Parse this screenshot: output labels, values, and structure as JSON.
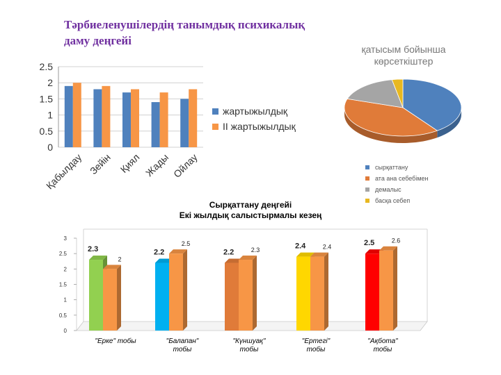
{
  "main_title": {
    "line1": "Тәрбиеленушілердің танымдық психикалық",
    "line2": "даму деңгейі"
  },
  "chart_data": [
    {
      "type": "bar",
      "categories": [
        "Қабылдау",
        "Зейін",
        "Қиял",
        "Жады",
        "Ойлау"
      ],
      "series": [
        {
          "name": "жартыжылдық",
          "values": [
            1.9,
            1.8,
            1.7,
            1.4,
            1.5
          ],
          "color": "#4F81BD"
        },
        {
          "name": "II жартыжылдық",
          "values": [
            2.0,
            1.9,
            1.8,
            1.7,
            1.8
          ],
          "color": "#F79646"
        }
      ],
      "ylim": [
        0,
        2.5
      ],
      "yticks": [
        "0",
        "0.5",
        "1",
        "1.5",
        "2",
        "2.5"
      ],
      "grid": true,
      "legend": "right"
    },
    {
      "type": "pie",
      "title_line1": "қатысым бойынша",
      "title_line2": "көрсеткіштер",
      "labels": [
        "сырқаттану",
        "ата ана себебімен",
        "демалыс",
        "басқа себеп"
      ],
      "values": [
        40,
        40,
        17,
        3
      ],
      "colors": [
        "#4F81BD",
        "#E07B39",
        "#A5A5A5",
        "#E8B820"
      ],
      "legend": "bottom"
    },
    {
      "type": "bar",
      "title_line1": "Сырқаттану деңгейі",
      "title_line2": "Екі жылдық салыстырмалы кезең",
      "categories": [
        {
          "line1": "\"Ерке\" тобы",
          "line2": ""
        },
        {
          "line1": "\"Балапан\"",
          "line2": "тобы"
        },
        {
          "line1": "\"Күншуақ\"",
          "line2": "тобы"
        },
        {
          "line1": "\"Ертегі\"",
          "line2": "тобы"
        },
        {
          "line1": "\"Ақбота\"",
          "line2": "тобы"
        }
      ],
      "series": [
        {
          "values": [
            2.3,
            2.2,
            2.2,
            2.4,
            2.5
          ],
          "labels": [
            "2.3",
            "2.2",
            "2.2",
            "2.4",
            "2.5"
          ],
          "colors": [
            "#92D050",
            "#00B0F0",
            "#E07B39",
            "#FFD700",
            "#FF0000"
          ]
        },
        {
          "values": [
            2.0,
            2.5,
            2.3,
            2.4,
            2.6
          ],
          "labels": [
            "2",
            "2.5",
            "2.3",
            "2.4",
            "2.6"
          ],
          "colors": [
            "#F79646",
            "#F79646",
            "#F79646",
            "#F79646",
            "#F79646"
          ]
        }
      ],
      "ylim": [
        0,
        3
      ],
      "yticks": [
        "0",
        "0.5",
        "1",
        "1.5",
        "2",
        "2.5",
        "3"
      ]
    }
  ]
}
